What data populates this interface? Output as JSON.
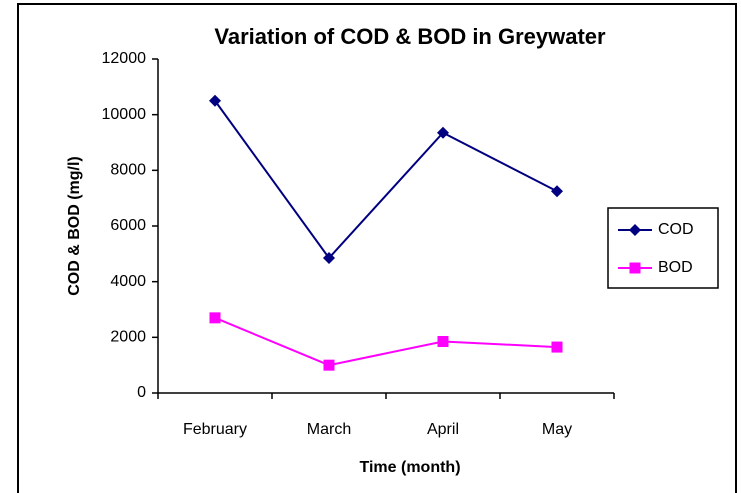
{
  "chart_data": {
    "type": "line",
    "title": "Variation of COD & BOD in Greywater",
    "x_label": "Time (month)",
    "y_label": "COD & BOD (mg/l)",
    "categories": [
      "February",
      "March",
      "April",
      "May"
    ],
    "series": [
      {
        "name": "COD",
        "color": "#000080",
        "marker": "diamond",
        "values": [
          10500,
          4850,
          9350,
          7250
        ]
      },
      {
        "name": "BOD",
        "color": "#ff00ff",
        "marker": "square",
        "values": [
          2700,
          1000,
          1850,
          1650
        ]
      }
    ],
    "ylim": [
      0,
      12000
    ],
    "yticks": [
      0,
      2000,
      4000,
      6000,
      8000,
      10000,
      12000
    ],
    "grid": false,
    "legend": "right"
  }
}
